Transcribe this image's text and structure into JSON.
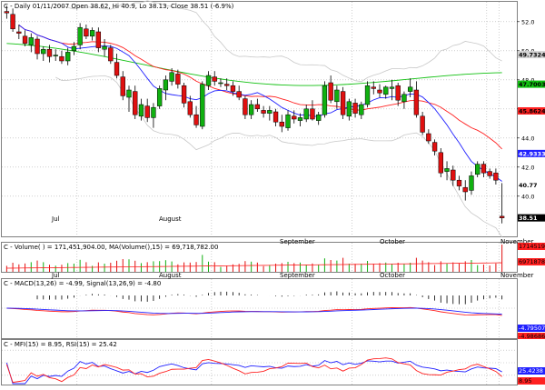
{
  "price": {
    "header": "C - Daily 01/11/2007 Open 38.62, Hi 40.9, Lo 38.13, Close 38.51 (-6.9%)",
    "axis_ticks": [
      "52.0",
      "50.0",
      "48.0",
      "46.0",
      "44.0",
      "42.0",
      "40.0"
    ],
    "axis_tick_values": [
      52,
      50,
      48,
      46,
      44,
      42,
      40
    ],
    "ylim": [
      37.3,
      53.3
    ],
    "tags": [
      {
        "text": "49.7324",
        "value": 49.7324,
        "bg": "#d3d3d3",
        "fg": "#000000"
      },
      {
        "text": "47.7003",
        "value": 47.7003,
        "bg": "#10c010",
        "fg": "#000000"
      },
      {
        "text": "45.8624",
        "value": 45.8624,
        "bg": "#ff2020",
        "fg": "#000000"
      },
      {
        "text": "42.9333",
        "value": 42.9333,
        "bg": "#2020ff",
        "fg": "#ffffff"
      },
      {
        "text": "40.77",
        "value": 40.77,
        "bg": "#ffffff",
        "fg": "#000000"
      },
      {
        "text": "38.51",
        "value": 38.51,
        "bg": "#000000",
        "fg": "#ffffff"
      }
    ]
  },
  "months": [
    "Jul",
    "August",
    "September",
    "October",
    "November"
  ],
  "volume": {
    "header": "C - Volume( ) = 171,451,904.00,  MA(Volume(),15) = 69,718,782.00",
    "tag_top": "171451904",
    "tag_ma": "69718782"
  },
  "macd": {
    "header": "C - MACD(13,26) = -4.99,  Signal(13,26,9) = -4.80",
    "tag_signal": "-4.79507",
    "tag_macd": "-4.98686"
  },
  "mfi": {
    "header": "C - MFI(15) = 8.95,  RSI(15) = 25.42",
    "tag_rsi": "25.4238",
    "tag_mfi": "8.95"
  },
  "colors": {
    "up": "#10b010",
    "down": "#e01010",
    "ma_short": "#2020ff",
    "ma_mid": "#ff2020",
    "ma_long": "#10c010",
    "bands": "#c8c8c8",
    "grid": "#b0b0b0"
  },
  "chart_data": {
    "type": "candlestick",
    "title": "C - Daily 01/11/2007",
    "ylim": [
      37.3,
      53.3
    ],
    "ohlc": [
      [
        52.7,
        53.1,
        52.2,
        52.6
      ],
      [
        52.5,
        52.9,
        51.3,
        51.5
      ],
      [
        51.3,
        51.8,
        50.8,
        51.2
      ],
      [
        51.0,
        51.4,
        50.3,
        50.5
      ],
      [
        50.4,
        51.2,
        49.9,
        50.9
      ],
      [
        50.8,
        51.0,
        49.4,
        49.8
      ],
      [
        49.8,
        50.3,
        49.3,
        50.1
      ],
      [
        50.1,
        50.4,
        49.2,
        49.6
      ],
      [
        49.7,
        50.1,
        49.3,
        49.7
      ],
      [
        49.6,
        50.0,
        49.1,
        49.3
      ],
      [
        49.3,
        50.2,
        49.0,
        49.9
      ],
      [
        50.0,
        50.6,
        49.7,
        50.3
      ],
      [
        50.4,
        51.9,
        50.1,
        51.6
      ],
      [
        51.5,
        51.8,
        50.8,
        51.0
      ],
      [
        51.0,
        51.6,
        50.7,
        51.4
      ],
      [
        51.3,
        51.6,
        49.9,
        50.2
      ],
      [
        50.1,
        50.8,
        49.6,
        50.3
      ],
      [
        50.2,
        50.4,
        49.1,
        49.3
      ],
      [
        49.2,
        49.8,
        48.1,
        48.3
      ],
      [
        48.2,
        48.6,
        46.6,
        46.9
      ],
      [
        46.8,
        47.6,
        45.8,
        47.3
      ],
      [
        47.2,
        47.6,
        45.3,
        45.6
      ],
      [
        45.5,
        46.7,
        45.2,
        46.3
      ],
      [
        46.2,
        46.7,
        45.1,
        45.4
      ],
      [
        45.4,
        46.4,
        44.7,
        46.1
      ],
      [
        46.2,
        47.6,
        46.0,
        47.4
      ],
      [
        47.3,
        48.3,
        46.6,
        48.0
      ],
      [
        47.9,
        48.8,
        47.6,
        48.5
      ],
      [
        48.4,
        48.7,
        47.4,
        47.7
      ],
      [
        47.6,
        47.8,
        46.1,
        46.4
      ],
      [
        46.5,
        46.9,
        45.4,
        45.6
      ],
      [
        45.6,
        46.2,
        44.7,
        44.9
      ],
      [
        44.8,
        47.9,
        44.6,
        47.7
      ],
      [
        47.6,
        48.6,
        47.3,
        48.3
      ],
      [
        48.2,
        48.6,
        47.6,
        47.9
      ],
      [
        47.8,
        48.1,
        47.5,
        47.8
      ],
      [
        47.7,
        48.1,
        47.3,
        47.6
      ],
      [
        47.6,
        47.9,
        46.9,
        47.2
      ],
      [
        47.2,
        47.6,
        46.6,
        46.8
      ],
      [
        46.7,
        46.9,
        45.3,
        45.6
      ],
      [
        45.6,
        46.6,
        45.3,
        46.3
      ],
      [
        46.3,
        46.7,
        45.8,
        46.0
      ],
      [
        45.9,
        46.2,
        45.4,
        45.7
      ],
      [
        45.7,
        46.2,
        45.2,
        45.9
      ],
      [
        45.8,
        46.0,
        44.8,
        45.1
      ],
      [
        45.1,
        45.6,
        44.4,
        44.8
      ],
      [
        44.7,
        45.9,
        44.5,
        45.6
      ],
      [
        45.5,
        45.9,
        45.0,
        45.3
      ],
      [
        45.2,
        45.7,
        44.8,
        45.4
      ],
      [
        45.3,
        46.3,
        45.1,
        46.0
      ],
      [
        46.0,
        46.6,
        45.2,
        45.3
      ],
      [
        45.2,
        45.8,
        44.9,
        45.6
      ],
      [
        45.6,
        47.9,
        45.4,
        47.6
      ],
      [
        47.8,
        48.3,
        46.4,
        46.6
      ],
      [
        46.5,
        47.6,
        46.0,
        47.3
      ],
      [
        47.2,
        47.5,
        45.3,
        45.6
      ],
      [
        45.5,
        46.7,
        45.2,
        46.5
      ],
      [
        46.4,
        46.7,
        45.4,
        45.7
      ],
      [
        45.6,
        46.5,
        45.3,
        46.3
      ],
      [
        46.3,
        47.9,
        46.1,
        47.6
      ],
      [
        47.5,
        47.9,
        47.0,
        47.4
      ],
      [
        47.3,
        47.7,
        46.8,
        47.1
      ],
      [
        47.0,
        47.6,
        46.7,
        47.5
      ],
      [
        47.4,
        48.0,
        46.6,
        47.5
      ],
      [
        47.6,
        47.8,
        46.2,
        46.6
      ],
      [
        46.5,
        47.2,
        46.0,
        47.0
      ],
      [
        47.2,
        48.1,
        46.8,
        47.5
      ],
      [
        47.3,
        47.9,
        45.4,
        45.6
      ],
      [
        45.5,
        45.8,
        44.2,
        44.4
      ],
      [
        44.3,
        44.6,
        43.6,
        43.8
      ],
      [
        43.7,
        43.9,
        42.8,
        43.1
      ],
      [
        43.0,
        43.3,
        41.3,
        41.6
      ],
      [
        41.7,
        42.4,
        41.1,
        41.9
      ],
      [
        41.8,
        42.1,
        40.7,
        41.1
      ],
      [
        41.1,
        41.4,
        40.4,
        40.7
      ],
      [
        40.6,
        41.1,
        39.7,
        40.3
      ],
      [
        40.4,
        41.7,
        40.1,
        41.4
      ],
      [
        41.5,
        42.4,
        41.3,
        42.2
      ],
      [
        42.2,
        42.4,
        41.3,
        41.6
      ],
      [
        41.7,
        41.9,
        41.2,
        41.4
      ],
      [
        41.6,
        41.9,
        40.8,
        41.1
      ],
      [
        38.62,
        40.9,
        38.13,
        38.51
      ]
    ]
  }
}
